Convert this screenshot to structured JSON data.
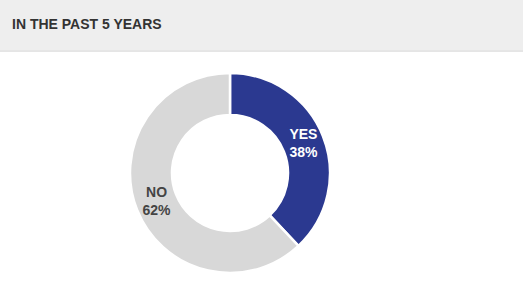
{
  "chart_data": {
    "type": "donut",
    "title": "IN THE PAST 5 YEARS",
    "categories": [
      "YES",
      "NO"
    ],
    "values": [
      38,
      62
    ],
    "value_labels": [
      "38%",
      "62%"
    ],
    "data_labels": true,
    "colors": [
      "#2b3990",
      "#d8d8d8"
    ]
  }
}
